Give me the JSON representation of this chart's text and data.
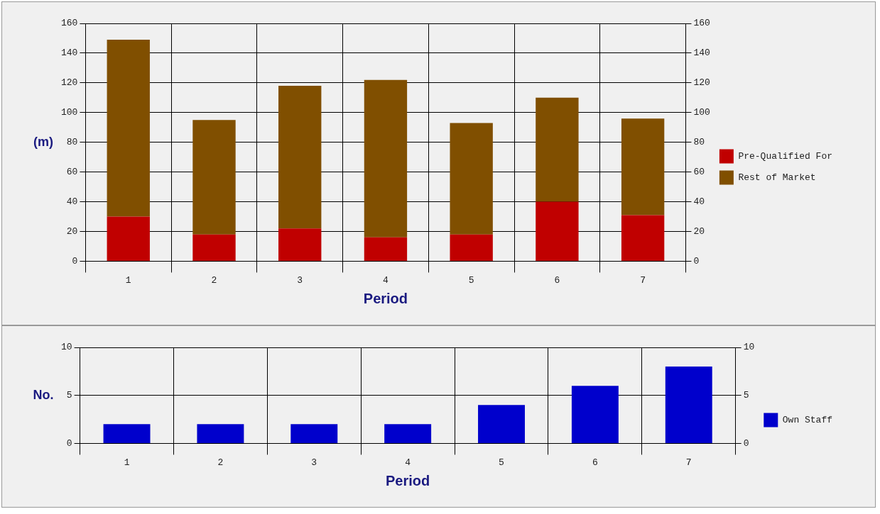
{
  "chart_data": [
    {
      "type": "bar",
      "categories": [
        "1",
        "2",
        "3",
        "4",
        "5",
        "6",
        "7"
      ],
      "stacked": true,
      "xlabel": "Period",
      "ylabel": "(m)",
      "ylim": [
        0,
        160
      ],
      "yticks": [
        0,
        20,
        40,
        60,
        80,
        100,
        120,
        140,
        160
      ],
      "y2lim": [
        0,
        160
      ],
      "y2ticks": [
        0,
        20,
        40,
        60,
        80,
        100,
        120,
        140,
        160
      ],
      "grid": true,
      "legend": "right",
      "series": [
        {
          "name": "Pre-Qualified For",
          "color": "#c00000",
          "values": [
            30,
            18,
            22,
            16,
            18,
            40,
            31
          ]
        },
        {
          "name": "Rest of Market",
          "color": "#804f00",
          "values": [
            119,
            77,
            96,
            106,
            75,
            70,
            65
          ]
        }
      ]
    },
    {
      "type": "bar",
      "categories": [
        "1",
        "2",
        "3",
        "4",
        "5",
        "6",
        "7"
      ],
      "xlabel": "Period",
      "ylabel": "No.",
      "ylim": [
        0,
        10
      ],
      "yticks": [
        0,
        5,
        10
      ],
      "y2lim": [
        0,
        10
      ],
      "y2ticks": [
        0,
        5,
        10
      ],
      "grid": true,
      "legend": "right",
      "series": [
        {
          "name": "Own Staff",
          "color": "#0000cc",
          "values": [
            2,
            2,
            2,
            2,
            4,
            6,
            8
          ]
        }
      ]
    }
  ]
}
